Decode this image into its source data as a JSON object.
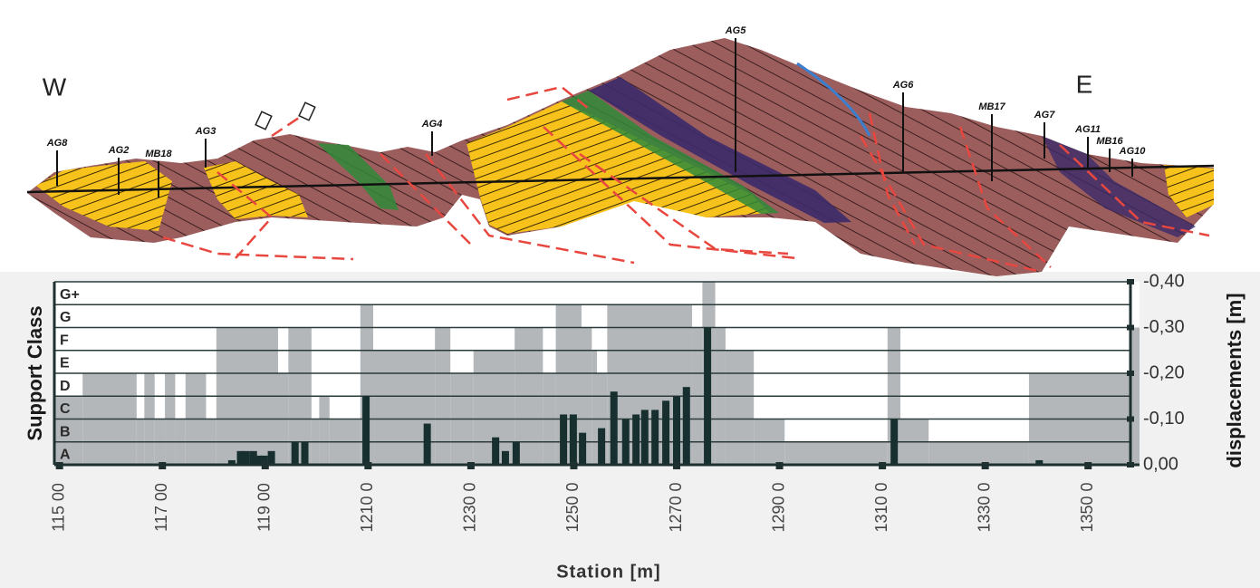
{
  "profile": {
    "west": "W",
    "east": "E",
    "boreholes": [
      "AG8",
      "AG2",
      "MB18",
      "AG3",
      "AG4",
      "AG5",
      "AG6",
      "MB17",
      "AG7",
      "AG11",
      "MB16",
      "AG10"
    ]
  },
  "chart_data": {
    "type": "bar",
    "xlabel": "Station [m]",
    "ylabel": "Support Class",
    "y2label": "displacements [m]",
    "xlim": [
      11490,
      13600
    ],
    "xticks": [
      {
        "value": 11500,
        "label": "115 00"
      },
      {
        "value": 11700,
        "label": "117 00"
      },
      {
        "value": 11900,
        "label": "119 00"
      },
      {
        "value": 12100,
        "label": "1210 0"
      },
      {
        "value": 12300,
        "label": "1230 0"
      },
      {
        "value": 12500,
        "label": "1250 0"
      },
      {
        "value": 12700,
        "label": "1270 0"
      },
      {
        "value": 12900,
        "label": "1290 0"
      },
      {
        "value": 13100,
        "label": "1310 0"
      },
      {
        "value": 13300,
        "label": "1330 0"
      },
      {
        "value": 13500,
        "label": "1350 0"
      }
    ],
    "categories": [
      "A",
      "B",
      "C",
      "D",
      "E",
      "F",
      "G",
      "G+"
    ],
    "support_class": {
      "color": "#b3b7ba",
      "bins": [
        11490,
        11545,
        11650,
        11665,
        11685,
        11705,
        11725,
        11745,
        11785,
        11805,
        11925,
        11945,
        11990,
        12005,
        12025,
        12085,
        12110,
        12230,
        12260,
        12305,
        12385,
        12440,
        12465,
        12515,
        12535,
        12545,
        12565,
        12730,
        12750,
        12775,
        12795,
        12850,
        12910,
        13110,
        13135,
        13190,
        13385,
        13580,
        13600
      ],
      "values": [
        "C",
        "D",
        "B",
        "D",
        "B",
        "D",
        "B",
        "D",
        "B",
        "F",
        "D",
        "F",
        "B",
        "C",
        "B",
        "G",
        "E",
        "F",
        "D",
        "E",
        "F",
        "D",
        "G",
        "F",
        "E",
        "D",
        "G",
        "F",
        "G+",
        "F",
        "E",
        "B",
        "A",
        "F",
        "B",
        "A",
        "D",
        "F"
      ]
    },
    "series": [
      {
        "color": "#17302f",
        "axis": "y2",
        "x": [
          11835,
          11852,
          11863,
          11877,
          11888,
          11898,
          11912,
          11958,
          11977,
          12096,
          12215,
          12348,
          12367,
          12388,
          12480,
          12499,
          12517,
          12554,
          12578,
          12601,
          12621,
          12638,
          12658,
          12679,
          12700,
          12719,
          12760,
          13123,
          13405
        ],
        "values": [
          -0.01,
          -0.03,
          -0.03,
          -0.03,
          -0.02,
          -0.02,
          -0.03,
          -0.05,
          -0.05,
          -0.15,
          -0.09,
          -0.06,
          -0.03,
          -0.05,
          -0.11,
          -0.11,
          -0.07,
          -0.08,
          -0.16,
          -0.1,
          -0.11,
          -0.12,
          -0.12,
          -0.14,
          -0.15,
          -0.17,
          -0.3,
          -0.1,
          -0.01
        ]
      }
    ],
    "y2lim": [
      0,
      -0.4
    ],
    "y2ticks": [
      {
        "value": 0,
        "label": "0,00"
      },
      {
        "value": -0.1,
        "label": "-0,10"
      },
      {
        "value": -0.2,
        "label": "-0,20"
      },
      {
        "value": -0.3,
        "label": "-0,30"
      },
      {
        "value": -0.4,
        "label": "-0,40"
      }
    ]
  }
}
